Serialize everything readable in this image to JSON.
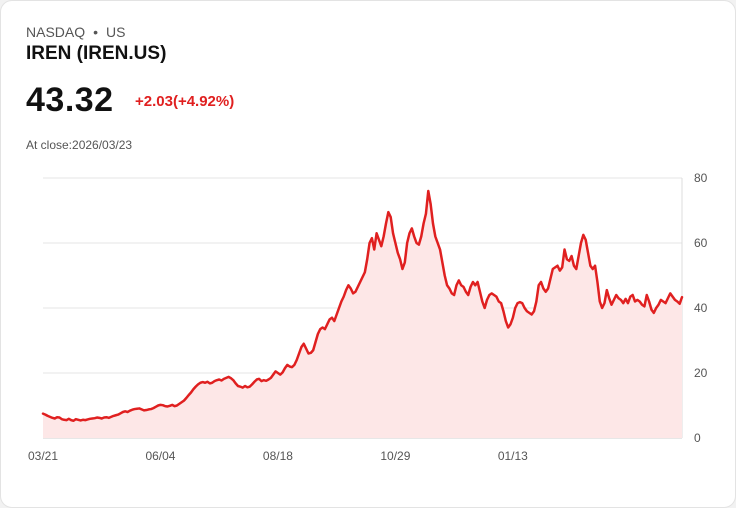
{
  "header": {
    "exchange": "NASDAQ",
    "separator": "•",
    "market": "US",
    "ticker": "IREN (IREN.US)"
  },
  "quote": {
    "price": "43.32",
    "change": "+2.03(+4.92%)",
    "close_label": "At close:2026/03/23"
  },
  "colors": {
    "line": "#e02020",
    "fill": "#fde7e7",
    "change": "#e02020"
  },
  "chart_data": {
    "type": "area",
    "title": "",
    "xlabel": "",
    "ylabel": "",
    "ylim": [
      0,
      80
    ],
    "yticks": [
      0,
      20,
      40,
      60,
      80
    ],
    "grid": true,
    "x_labels": [
      {
        "label": "03/21",
        "index": 0
      },
      {
        "label": "06/04",
        "index": 50
      },
      {
        "label": "08/18",
        "index": 100
      },
      {
        "label": "10/29",
        "index": 150
      },
      {
        "label": "01/13",
        "index": 200
      }
    ],
    "series": [
      {
        "name": "IREN",
        "values": [
          7.5,
          7.2,
          6.8,
          6.5,
          6.2,
          6.0,
          6.4,
          6.3,
          5.8,
          5.6,
          5.5,
          5.9,
          5.5,
          5.3,
          5.8,
          5.6,
          5.4,
          5.6,
          5.5,
          5.7,
          5.9,
          6.0,
          6.1,
          6.3,
          6.2,
          6.0,
          6.3,
          6.4,
          6.2,
          6.5,
          6.8,
          7.0,
          7.2,
          7.6,
          8.0,
          8.2,
          8.0,
          8.4,
          8.7,
          8.9,
          9.0,
          9.1,
          8.8,
          8.5,
          8.6,
          8.8,
          8.9,
          9.2,
          9.6,
          10.0,
          10.2,
          10.1,
          9.8,
          9.7,
          9.9,
          10.2,
          9.8,
          10.0,
          10.5,
          11.0,
          11.5,
          12.3,
          13.2,
          14.0,
          15.0,
          15.8,
          16.5,
          17.0,
          17.2,
          17.0,
          17.3,
          16.8,
          17.0,
          17.5,
          17.8,
          18.0,
          17.7,
          18.2,
          18.5,
          18.8,
          18.4,
          17.8,
          16.8,
          16.0,
          15.8,
          15.5,
          16.0,
          15.6,
          15.8,
          16.5,
          17.3,
          18.0,
          18.2,
          17.5,
          17.8,
          17.6,
          18.0,
          18.5,
          19.5,
          20.5,
          20.0,
          19.5,
          20.2,
          21.5,
          22.5,
          22.0,
          21.8,
          22.5,
          24.0,
          26.0,
          28.0,
          29.0,
          27.5,
          26.0,
          26.2,
          27.0,
          29.5,
          32.0,
          33.5,
          34.0,
          33.5,
          35.0,
          36.5,
          37.0,
          36.0,
          38.0,
          40.0,
          42.0,
          43.5,
          45.5,
          47.0,
          46.0,
          44.5,
          45.0,
          46.5,
          48.0,
          49.5,
          51.0,
          55.0,
          60.0,
          61.5,
          58.0,
          63.0,
          61.0,
          59.0,
          62.0,
          66.0,
          69.5,
          68.0,
          63.0,
          60.0,
          57.0,
          55.0,
          52.0,
          54.0,
          60.0,
          63.0,
          64.5,
          62.0,
          60.0,
          59.5,
          62.0,
          66.0,
          69.0,
          76.0,
          72.0,
          66.0,
          62.0,
          60.0,
          58.0,
          54.0,
          50.0,
          47.0,
          46.0,
          44.5,
          44.0,
          47.0,
          48.5,
          47.0,
          46.5,
          45.0,
          44.0,
          46.5,
          48.0,
          47.0,
          48.0,
          45.0,
          42.0,
          40.0,
          42.5,
          44.0,
          44.5,
          44.0,
          43.5,
          42.0,
          41.5,
          39.0,
          36.0,
          34.0,
          35.0,
          37.0,
          40.0,
          41.5,
          41.8,
          41.5,
          40.0,
          39.0,
          38.5,
          38.0,
          39.0,
          42.0,
          47.0,
          48.0,
          46.0,
          45.0,
          46.0,
          49.0,
          52.0,
          52.5,
          53.0,
          51.5,
          52.5,
          58.0,
          55.0,
          54.5,
          56.0,
          53.0,
          52.0,
          56.0,
          60.0,
          62.5,
          61.0,
          57.0,
          53.0,
          52.0,
          53.0,
          48.0,
          42.0,
          40.0,
          41.5,
          45.5,
          43.0,
          41.0,
          42.5,
          44.0,
          43.0,
          42.5,
          41.5,
          42.8,
          41.5,
          43.5,
          44.0,
          42.0,
          42.5,
          42.0,
          41.0,
          40.5,
          44.0,
          42.0,
          39.5,
          38.5,
          40.0,
          41.0,
          42.5,
          42.0,
          41.5,
          43.0,
          44.5,
          43.5,
          42.5,
          42.0,
          41.3,
          43.32
        ]
      }
    ]
  }
}
